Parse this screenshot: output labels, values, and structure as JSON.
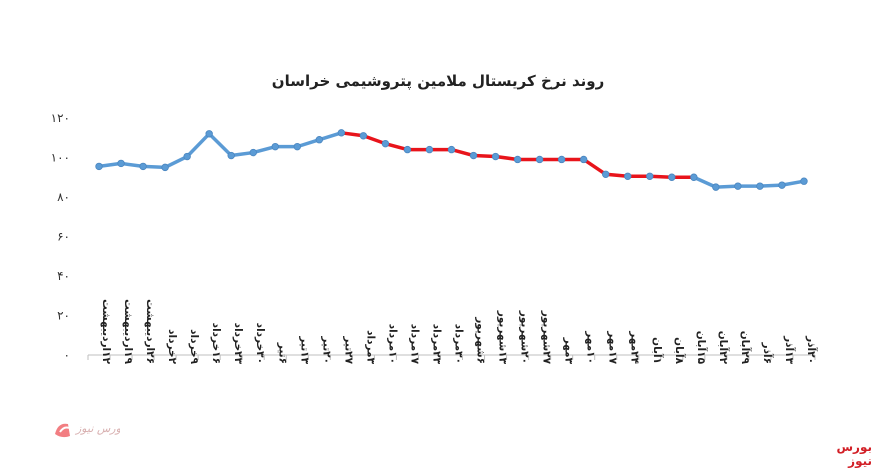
{
  "chart_data": {
    "type": "line",
    "title": "روند نرخ کریستال ملامین پتروشیمی خراسان",
    "xlabel": "",
    "ylabel": "",
    "ylim": [
      0,
      120
    ],
    "yticks": [
      "۰",
      "۲۰",
      "۴۰",
      "۶۰",
      "۸۰",
      "۱۰۰",
      "۱۲۰"
    ],
    "grid": false,
    "legend": "none",
    "categories": [
      "۱۲اردیبهشت",
      "۱۹اردیبهشت",
      "۲۶اردیبهشت",
      "۲خرداد",
      "۹خرداد",
      "۱۶خرداد",
      "۲۳خرداد",
      "۳۰خرداد",
      "۶تیر",
      "۱۳تیر",
      "۲۰تیر",
      "۲۷تیر",
      "۳مرداد",
      "۱۰مرداد",
      "۱۷مرداد",
      "۲۳مرداد",
      "۳۰مرداد",
      "۶شهریور",
      "۱۳شهریور",
      "۲۰شهریور",
      "۲۷شهریور",
      "۳مهر",
      "۱۰مهر",
      "۱۷مهر",
      "۲۴مهر",
      "۱آبان",
      "۸آبان",
      "۱۵آبان",
      "۲۲آبان",
      "۲۹آبان",
      "۶آذر",
      "۱۳آذر",
      "۲۰آذر"
    ],
    "values": [
      95.5,
      97,
      95.5,
      95,
      100.5,
      112,
      101,
      102.5,
      105.5,
      105.5,
      109,
      112.5,
      111,
      107,
      104,
      104,
      104,
      101,
      100.5,
      99,
      99,
      99,
      99,
      91.5,
      90.5,
      90.5,
      90,
      90,
      85,
      85.5,
      85.5,
      86,
      88
    ],
    "segments": [
      {
        "from": 0,
        "to": 11,
        "color": "#5b9bd5"
      },
      {
        "from": 11,
        "to": 27,
        "color": "#e8141b"
      },
      {
        "from": 27,
        "to": 32,
        "color": "#5b9bd5"
      }
    ],
    "colors": {
      "blue": "#5b9bd5",
      "red": "#e8141b",
      "marker": "#5b9bd5"
    }
  },
  "footer": {
    "brand": "بورس نیوز"
  },
  "logo": {
    "icon": "bourse-news-logo-icon"
  }
}
